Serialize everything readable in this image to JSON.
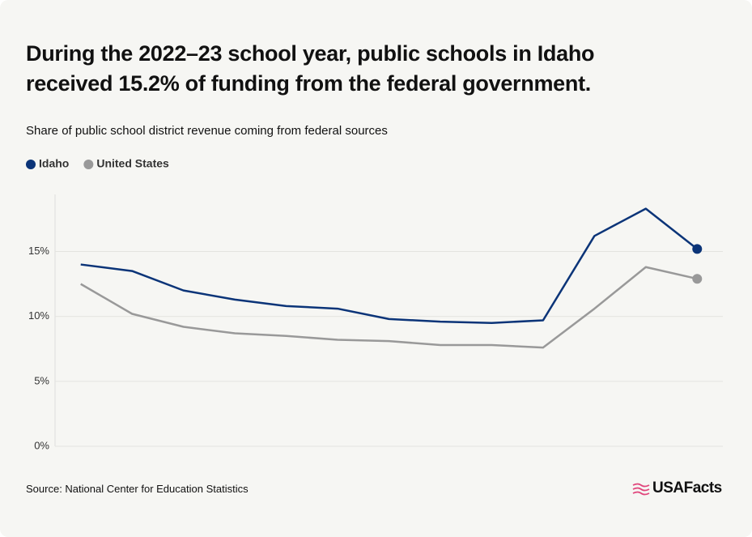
{
  "chart_data": {
    "type": "line",
    "title": "During the 2022–23 school year, public schools in Idaho received 15.2% of funding from the federal government.",
    "subtitle": "Share of public school district revenue coming from federal sources",
    "source": "Source: National Center for Education Statistics",
    "brand": "USAFacts",
    "categories": [
      null,
      null,
      null,
      null,
      null,
      null,
      null,
      null,
      null,
      null,
      null,
      null,
      null
    ],
    "series": [
      {
        "name": "Idaho",
        "color": "#0b3478",
        "values": [
          14.0,
          13.5,
          12.0,
          11.3,
          10.8,
          10.6,
          9.8,
          9.6,
          9.5,
          9.7,
          16.2,
          18.3,
          15.2
        ]
      },
      {
        "name": "United States",
        "color": "#999999",
        "values": [
          12.5,
          10.2,
          9.2,
          8.7,
          8.5,
          8.2,
          8.1,
          7.8,
          7.8,
          7.6,
          10.6,
          13.8,
          12.9
        ]
      }
    ],
    "ylim": [
      0,
      19.4
    ],
    "yticks": [
      {
        "value": 0,
        "label": "0%"
      },
      {
        "value": 5,
        "label": "5%"
      },
      {
        "value": 10,
        "label": "10%"
      },
      {
        "value": 15,
        "label": "15%"
      }
    ],
    "grid": true,
    "legend": "top-left"
  }
}
